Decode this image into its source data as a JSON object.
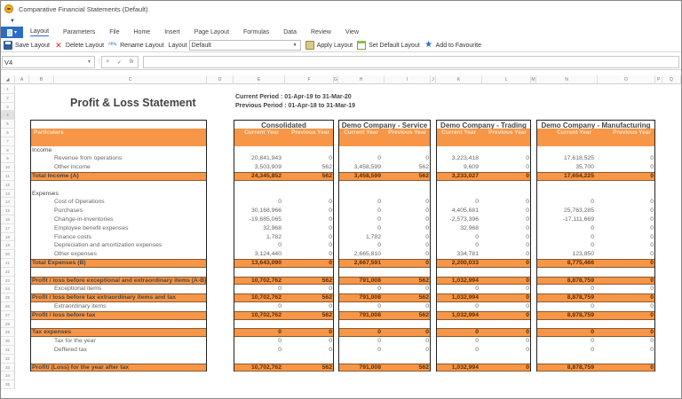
{
  "window": {
    "title": "Comparative Financial Statements (Default)"
  },
  "menu": {
    "tabs": [
      "Layout",
      "Parameters",
      "File",
      "Home",
      "Insert",
      "Page Layout",
      "Formulas",
      "Data",
      "Review",
      "View"
    ],
    "active": "Layout"
  },
  "toolbar": {
    "save_layout": "Save Layout",
    "delete_layout": "Delete Layout",
    "rename_layout": "Rename Layout",
    "layout_label": "Layout",
    "layout_value": "Default",
    "apply_layout": "Apply Layout",
    "set_default_layout": "Set Default Layout",
    "add_to_favourite": "Add to Favourite"
  },
  "formula_bar": {
    "name_box": "V4",
    "cancel": "×",
    "enter": "✓",
    "fx": "fx",
    "formula": ""
  },
  "columns": [
    "A",
    "B",
    "C",
    "D",
    "E",
    "F",
    "G",
    "H",
    "I",
    "J",
    "K",
    "L",
    "M",
    "N",
    "O",
    "P",
    "Q"
  ],
  "rows": [
    "1",
    "2",
    "3",
    "4",
    "5",
    "6",
    "7",
    "8",
    "9",
    "10",
    "11",
    "12",
    "13",
    "14",
    "15",
    "16",
    "17",
    "18",
    "19",
    "20",
    "21",
    "22",
    "23",
    "24",
    "25",
    "26",
    "27",
    "28",
    "29",
    "30",
    "31",
    "32",
    "33",
    "34",
    "35"
  ],
  "report": {
    "title": "Profit & Loss Statement",
    "current_period": "Current Period :  01-Apr-19 to 31-Mar-20",
    "previous_period": "Previous Period :  01-Apr-18 to 31-Mar-19",
    "particulars_header": "Particulars",
    "current_year_label": "Current Year",
    "previous_year_label": "Previous Year",
    "entities": [
      "Consolidated",
      "Demo Company - Service",
      "Demo Company - Trading",
      "Demo Company - Manufacturing"
    ],
    "lines": [
      {
        "row": 8,
        "label": "Income",
        "type": "section",
        "values": [
          "",
          "",
          "",
          "",
          "",
          "",
          "",
          ""
        ]
      },
      {
        "row": 9,
        "label": "Revenue from operations",
        "type": "item",
        "values": [
          "20,841,943",
          "0",
          "0",
          "0",
          "3,223,418",
          "0",
          "17,618,525",
          "0"
        ]
      },
      {
        "row": 10,
        "label": "Other income",
        "type": "item",
        "values": [
          "3,503,909",
          "562",
          "3,458,599",
          "562",
          "9,609",
          "0",
          "35,700",
          "0"
        ]
      },
      {
        "row": 11,
        "label": "Total Income (A)",
        "type": "total",
        "values": [
          "24,345,852",
          "562",
          "3,458,599",
          "562",
          "3,233,027",
          "0",
          "17,654,225",
          "0"
        ]
      },
      {
        "row": 13,
        "label": "Expenses",
        "type": "section",
        "values": [
          "",
          "",
          "",
          "",
          "",
          "",
          "",
          ""
        ]
      },
      {
        "row": 14,
        "label": "Cost of Operations",
        "type": "item",
        "values": [
          "0",
          "0",
          "0",
          "0",
          "0",
          "0",
          "0",
          "0"
        ]
      },
      {
        "row": 15,
        "label": "Purchases",
        "type": "item",
        "values": [
          "30,168,966",
          "0",
          "0",
          "0",
          "4,405,681",
          "0",
          "25,763,285",
          "0"
        ]
      },
      {
        "row": 16,
        "label": "Change-in-inventories",
        "type": "item",
        "values": [
          "-19,685,065",
          "0",
          "0",
          "0",
          "-2,573,396",
          "0",
          "-17,111,669",
          "0"
        ]
      },
      {
        "row": 17,
        "label": "Employee benefit expenses",
        "type": "item",
        "values": [
          "32,968",
          "0",
          "0",
          "0",
          "32,968",
          "0",
          "0",
          "0"
        ]
      },
      {
        "row": 18,
        "label": "Finance costs",
        "type": "item",
        "values": [
          "1,782",
          "0",
          "1,782",
          "0",
          "0",
          "0",
          "0",
          "0"
        ]
      },
      {
        "row": 19,
        "label": "Depreciation and amortization expenses",
        "type": "item",
        "values": [
          "0",
          "0",
          "0",
          "0",
          "0",
          "0",
          "0",
          "0"
        ]
      },
      {
        "row": 20,
        "label": "Other expenses",
        "type": "item",
        "values": [
          "3,124,440",
          "0",
          "2,665,810",
          "0",
          "334,781",
          "0",
          "123,850",
          "0"
        ]
      },
      {
        "row": 21,
        "label": "Total Expenses (B)",
        "type": "total",
        "values": [
          "13,643,090",
          "0",
          "2,667,591",
          "0",
          "2,200,033",
          "0",
          "8,775,466",
          "0"
        ]
      },
      {
        "row": 23,
        "label": "Profit / loss before exceptional  and extraordinary items (A-B)",
        "type": "total",
        "values": [
          "10,702,762",
          "562",
          "791,008",
          "562",
          "1,032,994",
          "0",
          "8,878,759",
          "0"
        ]
      },
      {
        "row": 24,
        "label": "Exceptional items",
        "type": "item",
        "values": [
          "0",
          "0",
          "0",
          "0",
          "0",
          "0",
          "0",
          "0"
        ]
      },
      {
        "row": 25,
        "label": " Profit / loss before tax extraordinary items and tax",
        "type": "total",
        "values": [
          "10,702,762",
          "562",
          "791,008",
          "562",
          "1,032,994",
          "0",
          "8,878,759",
          "0"
        ]
      },
      {
        "row": 26,
        "label": "Extraordinary items",
        "type": "item",
        "values": [
          "0",
          "0",
          "0",
          "0",
          "0",
          "0",
          "0",
          "0"
        ]
      },
      {
        "row": 27,
        "label": " Profit / loss before tax",
        "type": "total",
        "values": [
          "10,702,762",
          "562",
          "791,008",
          "562",
          "1,032,994",
          "0",
          "8,878,759",
          "0"
        ]
      },
      {
        "row": 29,
        "label": "Tax expenses",
        "type": "total",
        "values": [
          "0",
          "0",
          "0",
          "0",
          "0",
          "0",
          "0",
          "0"
        ]
      },
      {
        "row": 30,
        "label": "Tax for the year",
        "type": "item",
        "values": [
          "0",
          "0",
          "0",
          "0",
          "0",
          "0",
          "0",
          "0"
        ]
      },
      {
        "row": 31,
        "label": "Deffered tax",
        "type": "item",
        "values": [
          "0",
          "0",
          "0",
          "0",
          "0",
          "0",
          "0",
          "0"
        ]
      },
      {
        "row": 33,
        "label": "Profit/ (Loss) for the year after tax",
        "type": "total",
        "values": [
          "10,702,762",
          "562",
          "791,008",
          "562",
          "1,032,994",
          "0",
          "8,878,759",
          "0"
        ]
      }
    ]
  },
  "colors": {
    "accent_orange": "#f79646",
    "header_text": "#fde3cc",
    "total_text": "#5a2c06",
    "file_blue": "#2b6cc4"
  }
}
